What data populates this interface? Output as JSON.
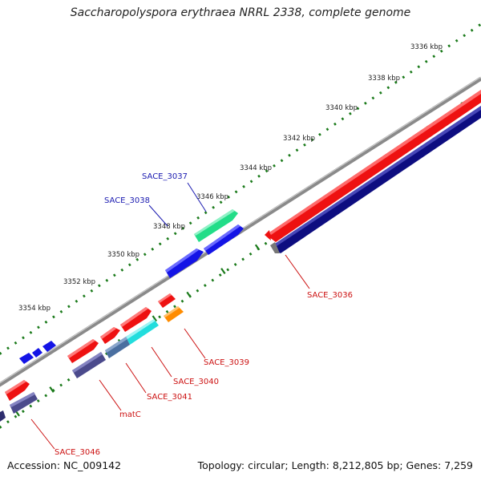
{
  "title": "Saccharopolyspora erythraea NRRL 2338, complete genome",
  "footer": {
    "accession": "Accession: NC_009142",
    "summary": "Topology: circular; Length: 8,212,805 bp; Genes: 7,259"
  },
  "colors": {
    "background": "#ffffff",
    "backbone": "#7a7a7a",
    "tick_track": "#1a7a1a",
    "forward_cds": "#ee1111",
    "reverse_cds": "#0d0d80",
    "blue_gene": "#1414e6",
    "teal_gene": "#22dd88",
    "cyan_gene": "#22dddd",
    "orange_gene": "#ff8c00",
    "steel_gene": "#4a6fa0",
    "slate_gene": "#4b4a8c",
    "blue_label": "#1a1ab0",
    "red_label": "#cc1111"
  },
  "map": {
    "tick_labels": [
      "3336 kbp",
      "3338 kbp",
      "3340 kbp",
      "3342 kbp",
      "3344 kbp",
      "3346 kbp",
      "3348 kbp",
      "3350 kbp",
      "3352 kbp",
      "3354 kbp"
    ],
    "gene_labels": [
      {
        "text": "SACE_3037",
        "color": "blue"
      },
      {
        "text": "SACE_3038",
        "color": "blue"
      },
      {
        "text": "SACE_3036",
        "color": "red"
      },
      {
        "text": "SACE_3039",
        "color": "red"
      },
      {
        "text": "SACE_3040",
        "color": "red"
      },
      {
        "text": "SACE_3041",
        "color": "red"
      },
      {
        "text": "matC",
        "color": "red"
      },
      {
        "text": "SACE_3046",
        "color": "red"
      }
    ]
  }
}
